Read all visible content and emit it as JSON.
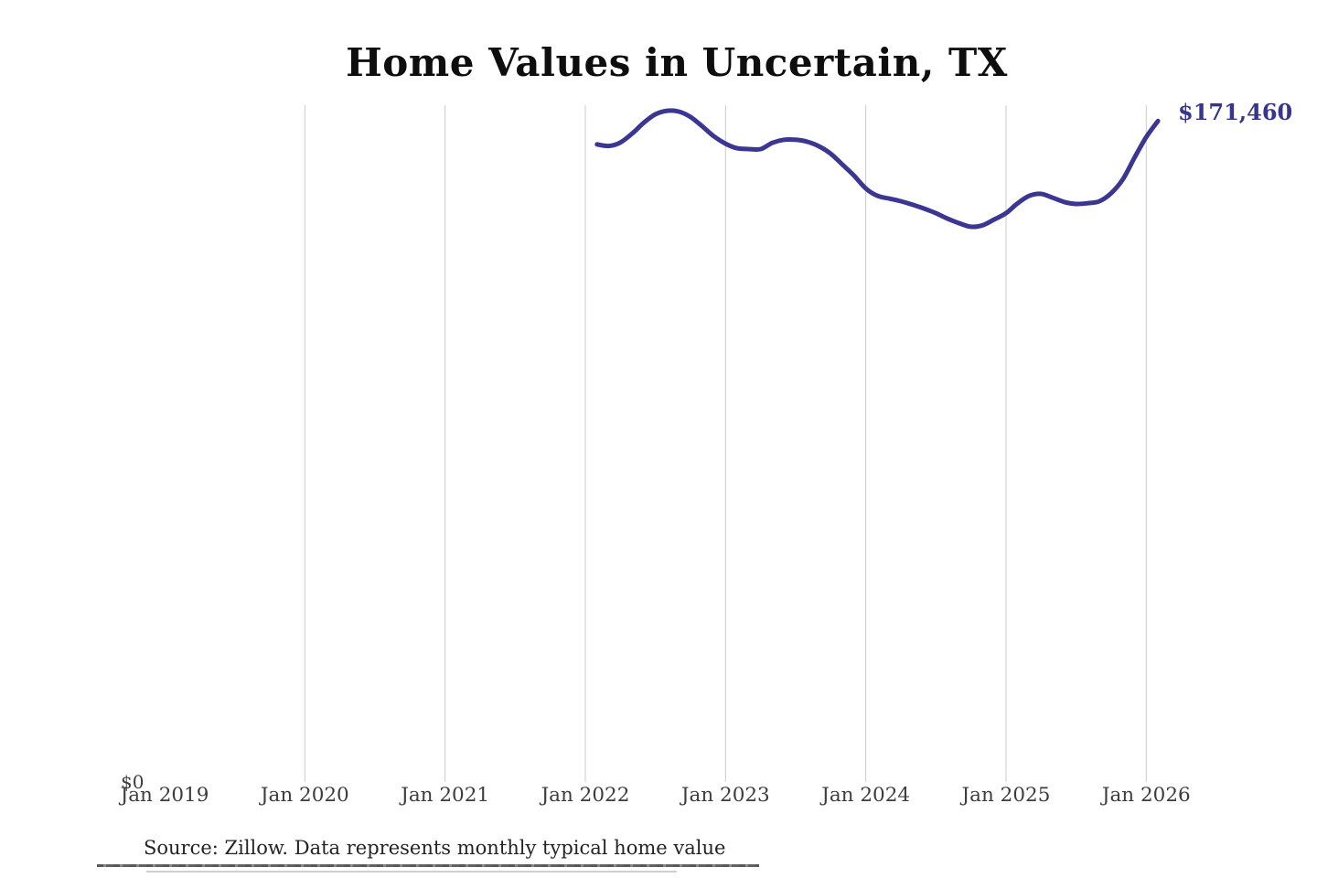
{
  "header": {
    "title": "Home Values in Uncertain, TX"
  },
  "footer": {
    "source_note": "Source: Zillow. Data represents monthly typical home value"
  },
  "colors": {
    "line": "#3b3691",
    "end_label": "#38358e",
    "grid": "#cbcbcb",
    "axis_text": "#3d3d3d",
    "title_text": "#0e0e0e",
    "background": "#ffffff"
  },
  "chart_data": {
    "type": "line",
    "title": "Home Values in Uncertain, TX",
    "xlabel": "",
    "ylabel": "",
    "legend": "none",
    "grid": "vertical-yearly",
    "x_ticks": [
      "Jan 2019",
      "Jan 2020",
      "Jan 2021",
      "Jan 2022",
      "Jan 2023",
      "Jan 2024",
      "Jan 2025",
      "Jan 2026"
    ],
    "x_ticks_with_gridline": [
      "Jan 2020",
      "Jan 2021",
      "Jan 2022",
      "Jan 2023",
      "Jan 2024",
      "Jan 2025",
      "Jan 2026"
    ],
    "y_axis": {
      "min": 0,
      "min_label": "$0",
      "implied_max": 180000
    },
    "end_label": "$171,460",
    "end_value": 171460,
    "series": [
      {
        "name": "Monthly typical home value",
        "color": "#3b3691",
        "points": [
          {
            "date": "2022-01",
            "value": 165400
          },
          {
            "date": "2022-02",
            "value": 165000
          },
          {
            "date": "2022-03",
            "value": 165900
          },
          {
            "date": "2022-04",
            "value": 168200
          },
          {
            "date": "2022-05",
            "value": 171000
          },
          {
            "date": "2022-06",
            "value": 173200
          },
          {
            "date": "2022-07",
            "value": 174100
          },
          {
            "date": "2022-08",
            "value": 173900
          },
          {
            "date": "2022-09",
            "value": 172500
          },
          {
            "date": "2022-10",
            "value": 170100
          },
          {
            "date": "2022-11",
            "value": 167500
          },
          {
            "date": "2022-12",
            "value": 165600
          },
          {
            "date": "2023-01",
            "value": 164400
          },
          {
            "date": "2023-02",
            "value": 164200
          },
          {
            "date": "2023-03",
            "value": 164200
          },
          {
            "date": "2023-04",
            "value": 165800
          },
          {
            "date": "2023-05",
            "value": 166600
          },
          {
            "date": "2023-06",
            "value": 166600
          },
          {
            "date": "2023-07",
            "value": 166100
          },
          {
            "date": "2023-08",
            "value": 164900
          },
          {
            "date": "2023-09",
            "value": 163000
          },
          {
            "date": "2023-10",
            "value": 160200
          },
          {
            "date": "2023-11",
            "value": 157300
          },
          {
            "date": "2023-12",
            "value": 154000
          },
          {
            "date": "2024-01",
            "value": 152100
          },
          {
            "date": "2024-02",
            "value": 151400
          },
          {
            "date": "2024-03",
            "value": 150700
          },
          {
            "date": "2024-04",
            "value": 149800
          },
          {
            "date": "2024-05",
            "value": 148800
          },
          {
            "date": "2024-06",
            "value": 147600
          },
          {
            "date": "2024-07",
            "value": 146200
          },
          {
            "date": "2024-08",
            "value": 145000
          },
          {
            "date": "2024-09",
            "value": 144100
          },
          {
            "date": "2024-10",
            "value": 144500
          },
          {
            "date": "2024-11",
            "value": 146000
          },
          {
            "date": "2024-12",
            "value": 147600
          },
          {
            "date": "2025-01",
            "value": 150200
          },
          {
            "date": "2025-02",
            "value": 152100
          },
          {
            "date": "2025-03",
            "value": 152600
          },
          {
            "date": "2025-04",
            "value": 151600
          },
          {
            "date": "2025-05",
            "value": 150500
          },
          {
            "date": "2025-06",
            "value": 150000
          },
          {
            "date": "2025-07",
            "value": 150200
          },
          {
            "date": "2025-08",
            "value": 150700
          },
          {
            "date": "2025-09",
            "value": 152800
          },
          {
            "date": "2025-10",
            "value": 156400
          },
          {
            "date": "2025-11",
            "value": 162000
          },
          {
            "date": "2025-12",
            "value": 167300
          },
          {
            "date": "2026-01",
            "value": 171460
          }
        ]
      }
    ]
  }
}
